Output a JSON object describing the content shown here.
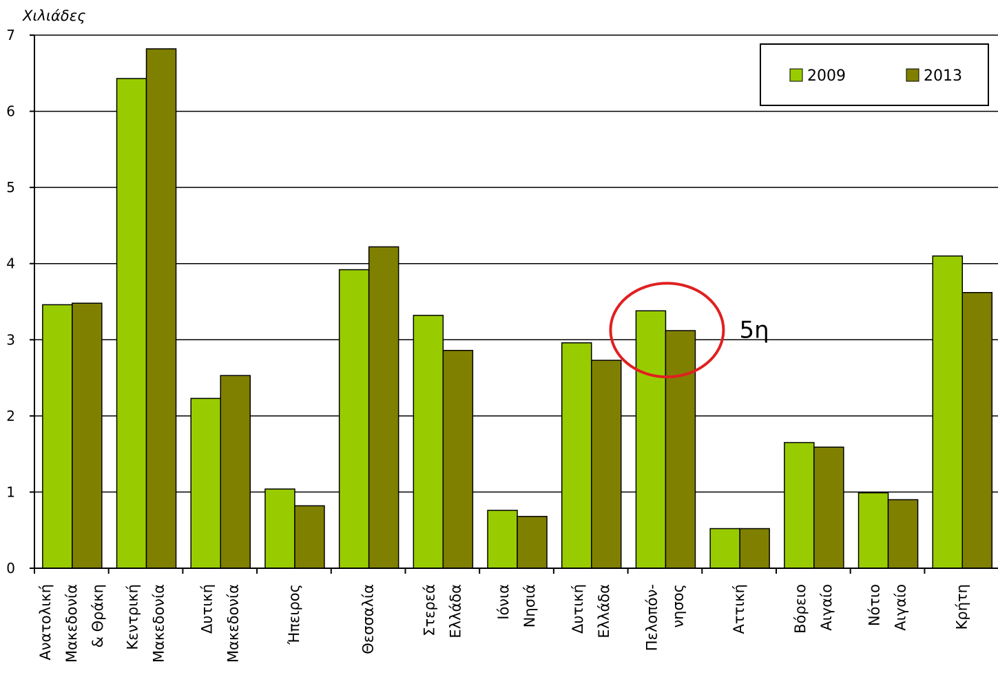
{
  "chart_data": {
    "type": "bar",
    "ylabel": "Χιλιάδες",
    "ylim": [
      0,
      7
    ],
    "yticks": [
      "0",
      "1",
      "2",
      "3",
      "4",
      "5",
      "6",
      "7"
    ],
    "grid": true,
    "legend_position": "top-right",
    "categories": [
      [
        "Ανατολική",
        "Μακεδονία",
        "& Θράκη"
      ],
      [
        "Κεντρική",
        "Μακεδονία"
      ],
      [
        "Δυτική",
        "Μακεδονία"
      ],
      [
        "Ήπειρος"
      ],
      [
        "Θεσσαλία"
      ],
      [
        "Στερεά",
        "Ελλάδα"
      ],
      [
        "Ιόνια",
        "Νησιά"
      ],
      [
        "Δυτική",
        "Ελλάδα"
      ],
      [
        "Πελοπόν-",
        "νησος"
      ],
      [
        "Αττική"
      ],
      [
        "Βόρειο",
        "Αιγαίο"
      ],
      [
        "Νότιο",
        "Αιγαίο"
      ],
      [
        "Κρήτη"
      ]
    ],
    "series": [
      {
        "name": "2009",
        "color": "#99cc00",
        "values": [
          3.46,
          6.43,
          2.23,
          1.04,
          3.92,
          3.32,
          0.76,
          2.96,
          3.38,
          0.52,
          1.65,
          0.99,
          4.1
        ]
      },
      {
        "name": "2013",
        "color": "#808000",
        "values": [
          3.48,
          6.82,
          2.53,
          0.82,
          4.22,
          2.86,
          0.68,
          2.73,
          3.12,
          0.52,
          1.59,
          0.9,
          3.62
        ]
      }
    ],
    "annotation": {
      "text": "5η",
      "category_index": 8,
      "color": "#e02020"
    }
  }
}
